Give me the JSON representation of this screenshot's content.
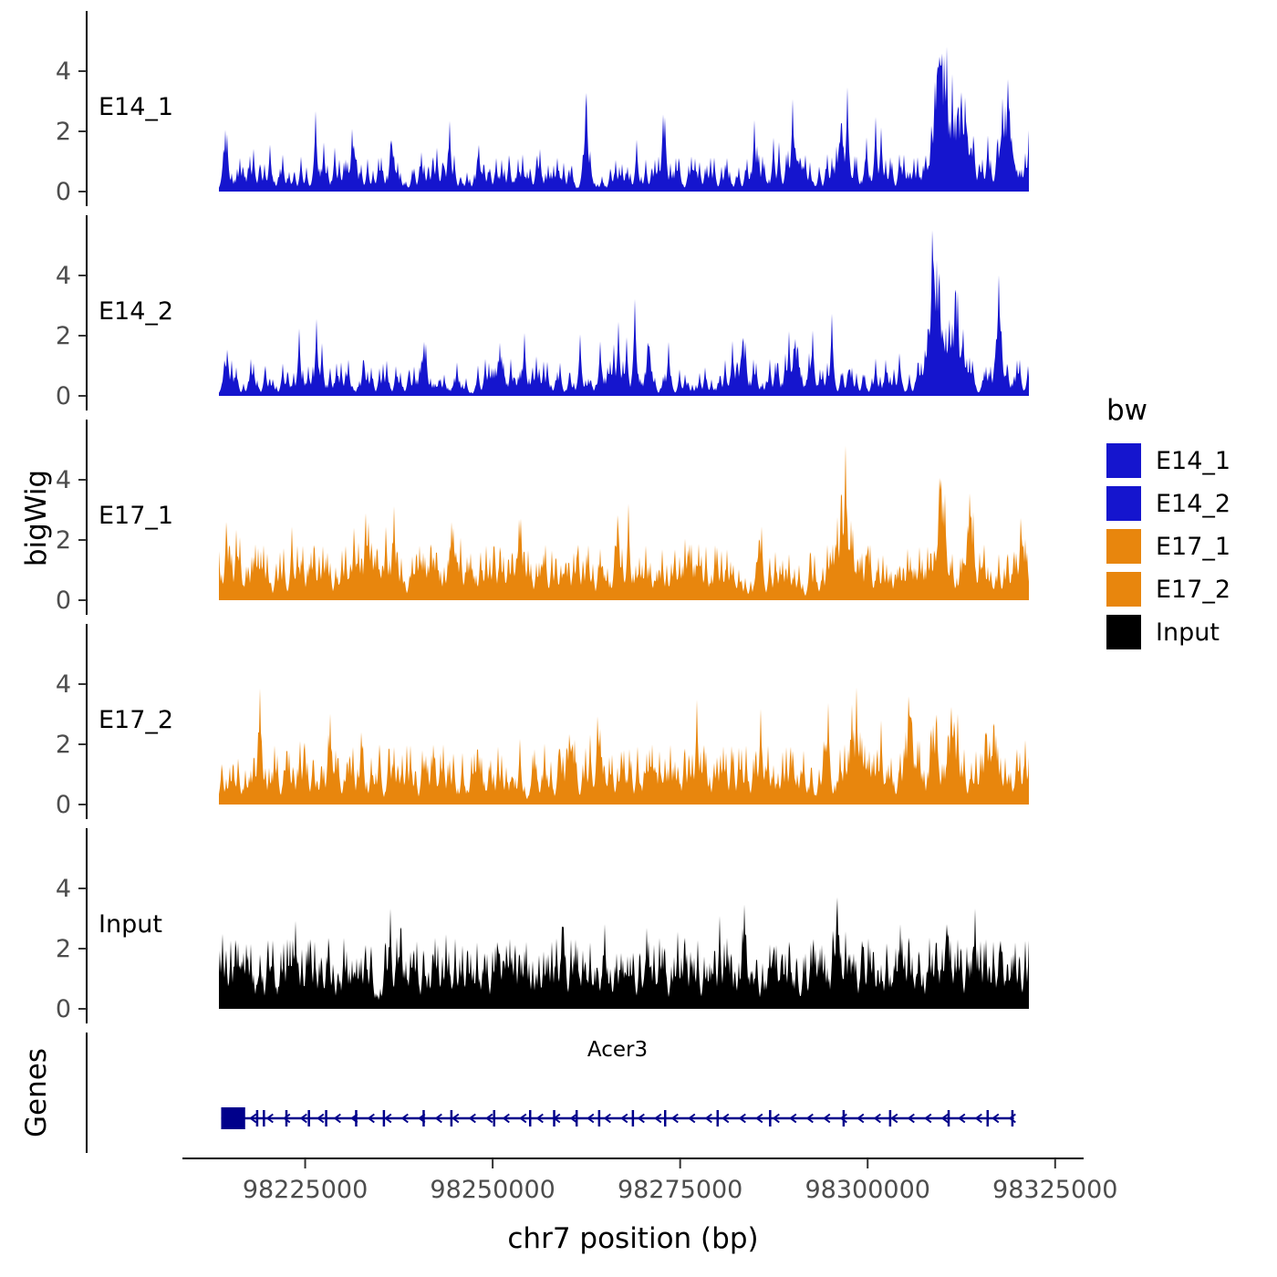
{
  "figure": {
    "ylabel": "bigWig",
    "genes_label": "Genes",
    "xlabel": "chr7 position (bp)",
    "legend_title": "bw"
  },
  "chart_data": {
    "type": "area",
    "title": "",
    "xlabel": "chr7 position (bp)",
    "ylabel": "bigWig",
    "layout": "stacked genome browser coverage tracks with gene model panel, legend right",
    "x_axis": {
      "chrom": "chr7",
      "xlim": [
        98209000,
        98331000
      ],
      "ticks": [
        98225000,
        98250000,
        98275000,
        98300000,
        98325000
      ],
      "tick_labels": [
        "98225000",
        "98250000",
        "98275000",
        "98300000",
        "98325000"
      ]
    },
    "y_axis": {
      "ticks": [
        0,
        2,
        4
      ],
      "ylim": [
        0,
        5.8
      ]
    },
    "signal_range": [
      98213500,
      98321500
    ],
    "clip_max": 5.5,
    "tracks": [
      {
        "name": "E14_1",
        "color": "#1515CE",
        "seed": 101,
        "base": 0.5,
        "pow": 3.0,
        "spike_prob": 0.035,
        "spike_amp": 1.3,
        "approx_max": 5.4,
        "peaks": [
          [
            98214200,
            2.2,
            150
          ],
          [
            98231500,
            1.6,
            250
          ],
          [
            98236500,
            1.5,
            200
          ],
          [
            98262500,
            1.6,
            300
          ],
          [
            98272800,
            3.0,
            180
          ],
          [
            98290500,
            1.4,
            700
          ],
          [
            98296500,
            1.7,
            500
          ],
          [
            98309800,
            4.8,
            900
          ],
          [
            98312500,
            2.6,
            900
          ],
          [
            98318500,
            2.2,
            900
          ],
          [
            98323500,
            2.6,
            400
          ]
        ]
      },
      {
        "name": "E14_2",
        "color": "#1515CE",
        "seed": 202,
        "base": 0.5,
        "pow": 3.0,
        "spike_prob": 0.035,
        "spike_amp": 1.3,
        "approx_max": 5.2,
        "peaks": [
          [
            98214500,
            1.6,
            200
          ],
          [
            98226500,
            1.7,
            200
          ],
          [
            98241000,
            1.8,
            250
          ],
          [
            98251000,
            1.3,
            400
          ],
          [
            98270800,
            2.5,
            180
          ],
          [
            98283500,
            1.5,
            300
          ],
          [
            98290000,
            1.6,
            500
          ],
          [
            98309000,
            4.6,
            800
          ],
          [
            98311800,
            3.2,
            700
          ],
          [
            98317500,
            3.8,
            400
          ],
          [
            98322800,
            2.8,
            400
          ]
        ]
      },
      {
        "name": "E17_1",
        "color": "#E8860D",
        "seed": 303,
        "base": 0.75,
        "pow": 2.2,
        "spike_prob": 0.03,
        "spike_amp": 1.2,
        "approx_max": 4.7,
        "peaks": [
          [
            98214500,
            1.9,
            200
          ],
          [
            98233500,
            1.8,
            600
          ],
          [
            98245000,
            1.2,
            500
          ],
          [
            98253500,
            1.5,
            400
          ],
          [
            98266500,
            1.8,
            300
          ],
          [
            98285500,
            1.5,
            400
          ],
          [
            98297000,
            2.0,
            800
          ],
          [
            98309900,
            3.9,
            500
          ],
          [
            98313500,
            1.9,
            700
          ],
          [
            98320500,
            1.6,
            500
          ],
          [
            98325800,
            3.0,
            200
          ]
        ]
      },
      {
        "name": "E17_2",
        "color": "#E8860D",
        "seed": 404,
        "base": 0.8,
        "pow": 2.2,
        "spike_prob": 0.03,
        "spike_amp": 1.2,
        "approx_max": 4.1,
        "peaks": [
          [
            98219000,
            2.0,
            250
          ],
          [
            98228500,
            1.7,
            300
          ],
          [
            98232500,
            1.8,
            250
          ],
          [
            98260500,
            2.2,
            200
          ],
          [
            98264000,
            2.4,
            200
          ],
          [
            98277300,
            2.3,
            150
          ],
          [
            98294500,
            2.3,
            300
          ],
          [
            98298500,
            2.1,
            400
          ],
          [
            98305800,
            2.6,
            500
          ],
          [
            98308800,
            2.9,
            500
          ],
          [
            98311200,
            3.0,
            400
          ],
          [
            98316500,
            1.8,
            500
          ],
          [
            98323200,
            2.2,
            400
          ]
        ]
      },
      {
        "name": "Input",
        "color": "#000000",
        "seed": 505,
        "base": 0.95,
        "pow": 1.7,
        "spike_prob": 0.03,
        "spike_amp": 0.9,
        "approx_max": 3.4,
        "peaks": [
          [
            98223500,
            1.2,
            300
          ],
          [
            98237500,
            1.4,
            200
          ],
          [
            98251500,
            1.5,
            200
          ],
          [
            98259500,
            1.8,
            200
          ],
          [
            98270500,
            1.3,
            300
          ],
          [
            98283500,
            1.3,
            250
          ],
          [
            98295800,
            2.0,
            250
          ],
          [
            98298000,
            1.6,
            250
          ],
          [
            98310300,
            1.4,
            300
          ],
          [
            98326300,
            1.8,
            200
          ]
        ]
      }
    ],
    "gene_panel": {
      "label": "Genes",
      "gene": {
        "name": "Acer3",
        "strand": "-",
        "start": 98213800,
        "end": 98319500,
        "color": "#00008B",
        "utr_box": [
          98213800,
          98217000
        ],
        "exon_ticks": [
          98218600,
          98219500,
          98222500,
          98225500,
          98227800,
          98231800,
          98235500,
          98240800,
          98244500,
          98250200,
          98255000,
          98258200,
          98261200,
          98264200,
          98268700,
          98273000,
          98280000,
          98287000,
          98296800,
          98303000,
          98310800,
          98316000,
          98319300
        ],
        "arrow_step_bp": 2250
      }
    },
    "legend": {
      "title": "bw",
      "entries": [
        {
          "label": "E14_1",
          "color": "#1515CE"
        },
        {
          "label": "E14_2",
          "color": "#1515CE"
        },
        {
          "label": "E17_1",
          "color": "#E8860D"
        },
        {
          "label": "E17_2",
          "color": "#E8860D"
        },
        {
          "label": "Input",
          "color": "#000000"
        }
      ]
    }
  }
}
